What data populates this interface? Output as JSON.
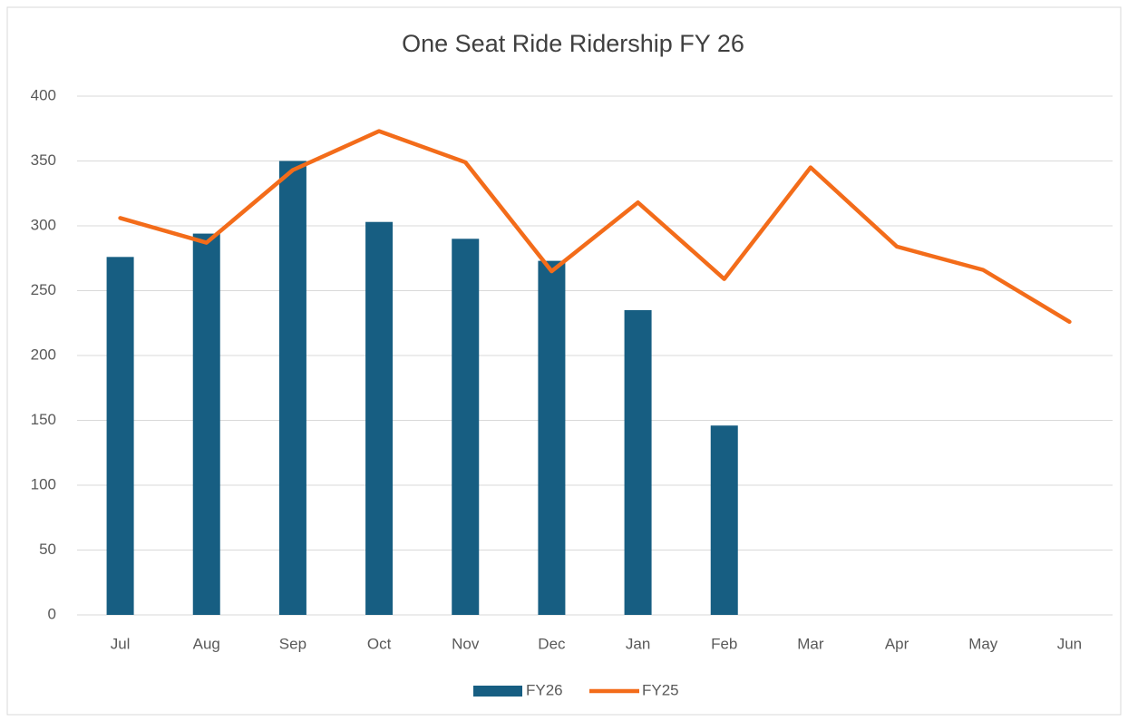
{
  "chart_data": {
    "type": "combo",
    "title": "One Seat Ride Ridership FY 26",
    "categories": [
      "Jul",
      "Aug",
      "Sep",
      "Oct",
      "Nov",
      "Dec",
      "Jan",
      "Feb",
      "Mar",
      "Apr",
      "May",
      "Jun"
    ],
    "series": [
      {
        "name": "FY26",
        "type": "bar",
        "color": "#175e82",
        "values": [
          276,
          294,
          350,
          303,
          290,
          273,
          235,
          146,
          null,
          null,
          null,
          null
        ]
      },
      {
        "name": "FY25",
        "type": "line",
        "color": "#f36c1a",
        "values": [
          306,
          287,
          343,
          373,
          349,
          265,
          318,
          259,
          345,
          284,
          266,
          226
        ]
      }
    ],
    "ylim": [
      0,
      400
    ],
    "yticks": [
      0,
      50,
      100,
      150,
      200,
      250,
      300,
      350,
      400
    ],
    "grid": true,
    "legend": "bottom"
  }
}
